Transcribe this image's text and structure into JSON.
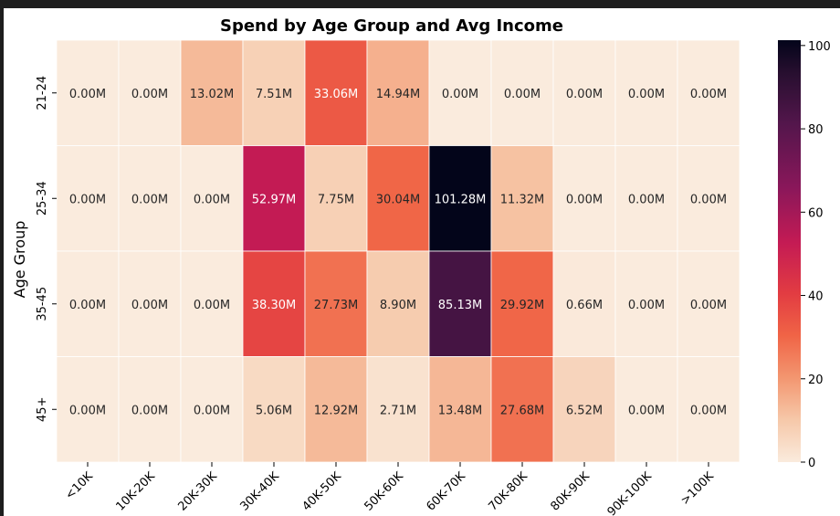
{
  "chart_data": {
    "type": "heatmap",
    "title": "Spend by Age Group and Avg Income",
    "xlabel": "",
    "ylabel": "Age Group",
    "x_categories": [
      "<10K",
      "10K-20K",
      "20K-30K",
      "30K-40K",
      "40K-50K",
      "50K-60K",
      "60K-70K",
      "70K-80K",
      "80K-90K",
      "90K-100K",
      ">100K"
    ],
    "y_categories": [
      "21-24",
      "25-34",
      "35-45",
      "45+"
    ],
    "values": [
      [
        0.0,
        0.0,
        13.02,
        7.51,
        33.06,
        14.94,
        0.0,
        0.0,
        0.0,
        0.0,
        0.0
      ],
      [
        0.0,
        0.0,
        0.0,
        52.97,
        7.75,
        30.04,
        101.28,
        11.32,
        0.0,
        0.0,
        0.0
      ],
      [
        0.0,
        0.0,
        0.0,
        38.3,
        27.73,
        8.9,
        85.13,
        29.92,
        0.66,
        0.0,
        0.0
      ],
      [
        0.0,
        0.0,
        0.0,
        5.06,
        12.92,
        2.71,
        13.48,
        27.68,
        6.52,
        0.0,
        0.0
      ]
    ],
    "annotations": [
      [
        "0.00M",
        "0.00M",
        "13.02M",
        "7.51M",
        "33.06M",
        "14.94M",
        "0.00M",
        "0.00M",
        "0.00M",
        "0.00M",
        "0.00M"
      ],
      [
        "0.00M",
        "0.00M",
        "0.00M",
        "52.97M",
        "7.75M",
        "30.04M",
        "101.28M",
        "11.32M",
        "0.00M",
        "0.00M",
        "0.00M"
      ],
      [
        "0.00M",
        "0.00M",
        "0.00M",
        "38.30M",
        "27.73M",
        "8.90M",
        "85.13M",
        "29.92M",
        "0.66M",
        "0.00M",
        "0.00M"
      ],
      [
        "0.00M",
        "0.00M",
        "0.00M",
        "5.06M",
        "12.92M",
        "2.71M",
        "13.48M",
        "27.68M",
        "6.52M",
        "0.00M",
        "0.00M"
      ]
    ],
    "colorbar": {
      "range": [
        0,
        101.28
      ],
      "ticks": [
        0,
        20,
        40,
        60,
        80,
        100
      ],
      "colormap": "rocket_r"
    }
  }
}
